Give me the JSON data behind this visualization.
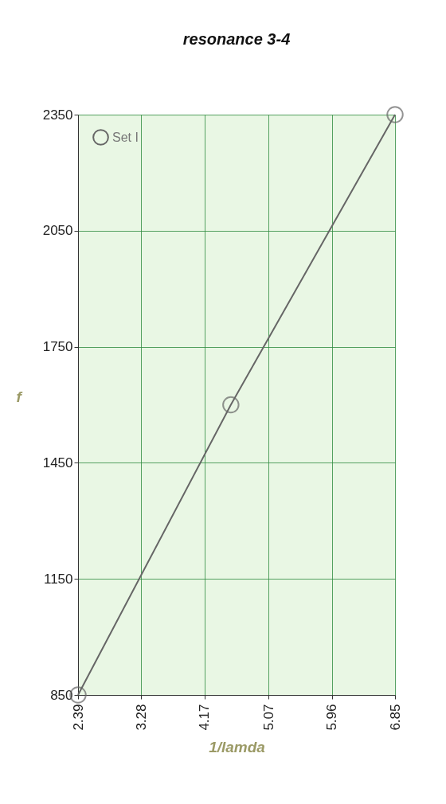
{
  "chart_data": {
    "type": "line",
    "title": "resonance 3-4",
    "xlabel": "1/lamda",
    "ylabel": "f",
    "series": [
      {
        "name": "Set I",
        "color": "#666666",
        "x": [
          2.39,
          4.54,
          6.85
        ],
        "values": [
          850,
          1600,
          2350
        ]
      }
    ],
    "xlim": [
      2.39,
      6.85
    ],
    "xticks": [
      2.39,
      3.28,
      4.17,
      5.07,
      5.96,
      6.85
    ],
    "ylim": [
      850,
      2350
    ],
    "yticks": [
      850,
      1150,
      1450,
      1750,
      2050,
      2350
    ],
    "grid": true,
    "legend": "top left",
    "marker": "circle",
    "line_style": "solid"
  }
}
